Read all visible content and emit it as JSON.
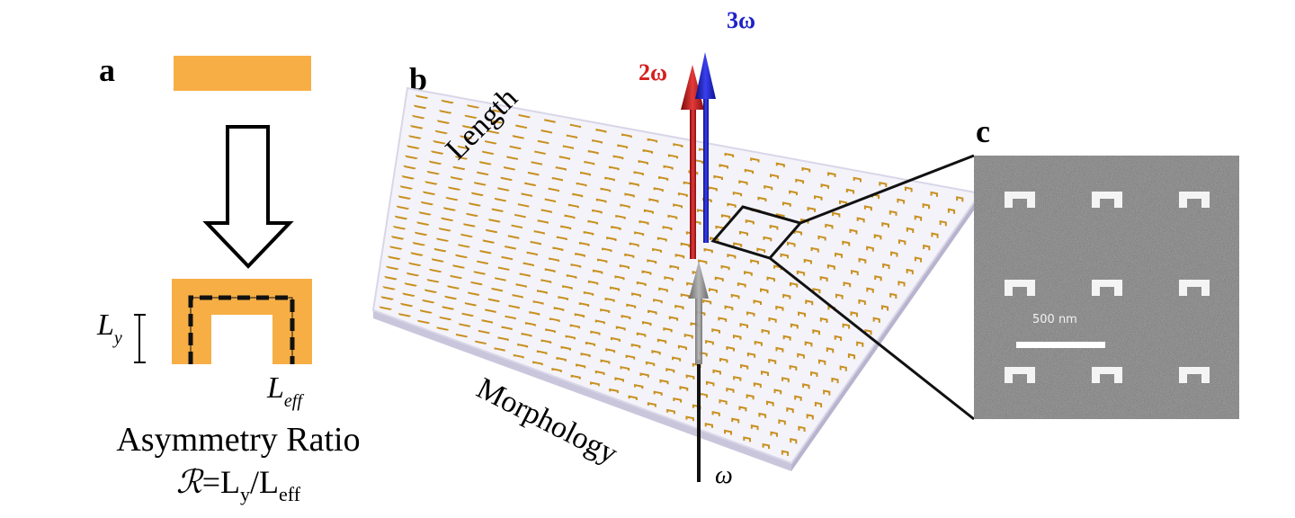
{
  "panels": {
    "a": {
      "label": "a",
      "ly_label": {
        "main": "L",
        "sub": "y"
      },
      "leff_label": {
        "main": "L",
        "sub": "eff"
      },
      "title": "Asymmetry Ratio",
      "equation": {
        "symbol": "ℛ",
        "eq": "=L",
        "sub_y": "y",
        "slash": "/L",
        "sub_eff": "eff"
      },
      "colors": {
        "gold": "#F7AE45",
        "outline": "#000000"
      }
    },
    "b": {
      "label": "b",
      "axis_top": "Length",
      "axis_bottom": "Morphology",
      "beams": {
        "input": "ω",
        "second_harmonic": "2ω",
        "third_harmonic": "3ω"
      },
      "colors": {
        "second": "#D61E1E",
        "third": "#1E22C8",
        "input": "#8a8a8a",
        "plate": "#F4F3FA",
        "plate_edge": "#C9C6DC",
        "element": "#C8901E"
      }
    },
    "c": {
      "label": "c",
      "scale_bar": "500 nm"
    }
  }
}
